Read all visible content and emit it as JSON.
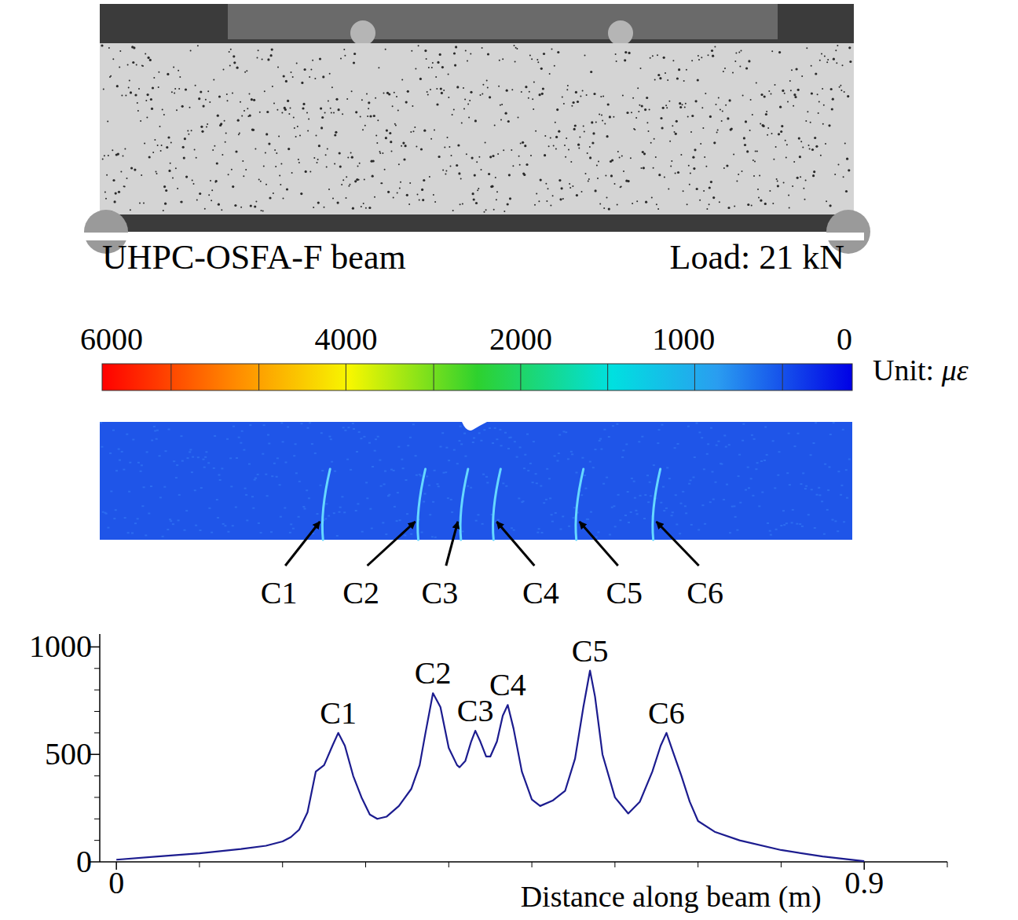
{
  "photo": {
    "caption": "UHPC-OSFA-F beam",
    "load": "Load: 21 kN"
  },
  "colorbar": {
    "ticks": [
      6000,
      4000,
      2000,
      1000,
      0
    ],
    "unit": "Unit: με"
  },
  "strain_field": {
    "cracks": [
      "C1",
      "C2",
      "C3",
      "C4",
      "C5",
      "C6"
    ]
  },
  "chart_data": {
    "type": "line",
    "xlabel": "Distance along beam (m)",
    "x": [
      0,
      0.05,
      0.1,
      0.15,
      0.18,
      0.2,
      0.21,
      0.22,
      0.23,
      0.24,
      0.25,
      0.26,
      0.267,
      0.275,
      0.285,
      0.295,
      0.305,
      0.314,
      0.325,
      0.34,
      0.355,
      0.365,
      0.372,
      0.381,
      0.39,
      0.4,
      0.41,
      0.413,
      0.42,
      0.427,
      0.432,
      0.438,
      0.445,
      0.45,
      0.458,
      0.465,
      0.471,
      0.478,
      0.488,
      0.5,
      0.51,
      0.525,
      0.54,
      0.552,
      0.562,
      0.57,
      0.576,
      0.585,
      0.6,
      0.616,
      0.63,
      0.645,
      0.655,
      0.662,
      0.67,
      0.68,
      0.69,
      0.7,
      0.72,
      0.75,
      0.8,
      0.85,
      0.9
    ],
    "series": [
      {
        "color": "#1c1c8f",
        "values": [
          10,
          25,
          40,
          60,
          75,
          95,
          115,
          150,
          230,
          420,
          450,
          540,
          600,
          540,
          400,
          300,
          220,
          200,
          210,
          260,
          340,
          450,
          600,
          785,
          720,
          530,
          450,
          440,
          470,
          560,
          610,
          560,
          490,
          490,
          560,
          680,
          730,
          620,
          420,
          290,
          260,
          285,
          330,
          480,
          720,
          890,
          770,
          500,
          300,
          225,
          280,
          420,
          540,
          600,
          510,
          400,
          280,
          190,
          140,
          100,
          55,
          25,
          3
        ]
      }
    ],
    "xlim": [
      -0.02,
      1.0
    ],
    "ylim": [
      0,
      1060
    ],
    "xticks": [
      0,
      0.9
    ],
    "yticks": [
      0,
      500,
      1000
    ],
    "x_minor_ticks": [
      0.1,
      0.2,
      0.3,
      0.4,
      0.5,
      0.6,
      0.7,
      0.8,
      1.0
    ],
    "y_minor_ticks": [
      100,
      200,
      300,
      400,
      600,
      700,
      800,
      900
    ],
    "annotations": [
      {
        "text": "C1",
        "x": 0.267,
        "y": 600
      },
      {
        "text": "C2",
        "x": 0.381,
        "y": 785
      },
      {
        "text": "C3",
        "x": 0.432,
        "y": 610
      },
      {
        "text": "C4",
        "x": 0.471,
        "y": 730
      },
      {
        "text": "C5",
        "x": 0.57,
        "y": 890
      },
      {
        "text": "C6",
        "x": 0.662,
        "y": 600
      }
    ]
  }
}
